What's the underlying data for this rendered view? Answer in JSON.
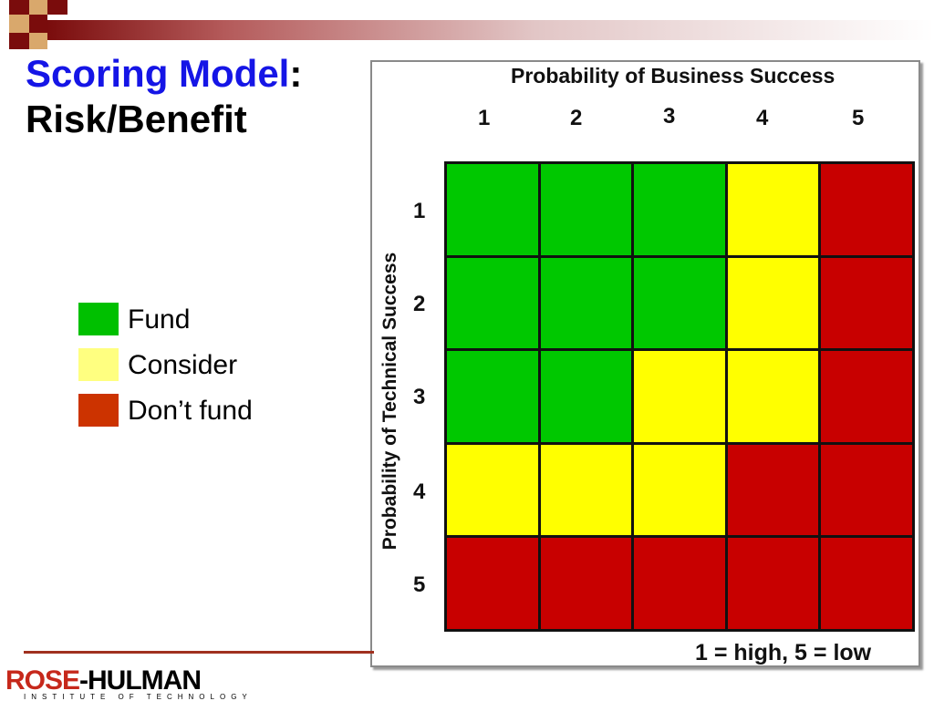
{
  "colors": {
    "fund": "#00c800",
    "consider": "#ffff00",
    "dont_fund": "#c80000",
    "legend_fund": "#00c000",
    "legend_consider": "#ffff80",
    "legend_dont_fund": "#cc3300",
    "title_accent": "#1515e6"
  },
  "title": {
    "part1": "Scoring Model",
    "colon": ":",
    "part2": "Risk/Benefit"
  },
  "legend": {
    "items": [
      {
        "label": "Fund",
        "color_key": "legend_fund"
      },
      {
        "label": "Consider",
        "color_key": "legend_consider"
      },
      {
        "label": "Don’t fund",
        "color_key": "legend_dont_fund"
      }
    ]
  },
  "matrix": {
    "x_title": "Probability of Business Success",
    "y_title": "Probability of Technical Success",
    "columns": [
      "1",
      "2",
      "3",
      "4",
      "5"
    ],
    "rows": [
      "1",
      "2",
      "3",
      "4",
      "5"
    ],
    "cells": [
      [
        "fund",
        "fund",
        "fund",
        "consider",
        "dont_fund"
      ],
      [
        "fund",
        "fund",
        "fund",
        "consider",
        "dont_fund"
      ],
      [
        "fund",
        "fund",
        "consider",
        "consider",
        "dont_fund"
      ],
      [
        "consider",
        "consider",
        "consider",
        "dont_fund",
        "dont_fund"
      ],
      [
        "dont_fund",
        "dont_fund",
        "dont_fund",
        "dont_fund",
        "dont_fund"
      ]
    ],
    "note": "1 = high, 5 = low"
  },
  "logo": {
    "word1": "ROSE",
    "word2": "-HULMAN",
    "subtitle": "INSTITUTE OF TECHNOLOGY"
  }
}
